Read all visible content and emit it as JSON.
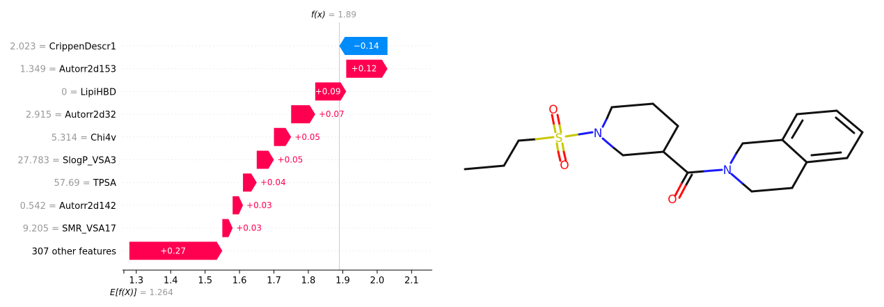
{
  "chart_data": {
    "type": "waterfall",
    "title": "",
    "fx_label": "f(x)",
    "fx_value": "1.89",
    "base_label": "E[f(X)]",
    "base_value": "1.264",
    "base": 1.264,
    "final": 1.89,
    "xlim": [
      1.26,
      2.16
    ],
    "xticks": [
      1.3,
      1.4,
      1.5,
      1.6,
      1.7,
      1.8,
      1.9,
      2.0,
      2.1
    ],
    "xtick_labels": [
      "1.3",
      "1.4",
      "1.5",
      "1.6",
      "1.7",
      "1.8",
      "1.9",
      "2.0",
      "2.1"
    ],
    "positive_color": "#ff0051",
    "negative_color": "#008bfb",
    "features": [
      {
        "value": "2.023",
        "name": "CrippenDescr1",
        "contribution": -0.14,
        "label": "−0.14"
      },
      {
        "value": "1.349",
        "name": "Autorr2d153",
        "contribution": 0.12,
        "label": "+0.12"
      },
      {
        "value": "0",
        "name": "LipiHBD",
        "contribution": 0.09,
        "label": "+0.09"
      },
      {
        "value": "2.915",
        "name": "Autorr2d32",
        "contribution": 0.07,
        "label": "+0.07"
      },
      {
        "value": "5.314",
        "name": "Chi4v",
        "contribution": 0.05,
        "label": "+0.05"
      },
      {
        "value": "27.783",
        "name": "SlogP_VSA3",
        "contribution": 0.05,
        "label": "+0.05"
      },
      {
        "value": "57.69",
        "name": "TPSA",
        "contribution": 0.04,
        "label": "+0.04"
      },
      {
        "value": "0.542",
        "name": "Autorr2d142",
        "contribution": 0.03,
        "label": "+0.03"
      },
      {
        "value": "9.205",
        "name": "SMR_VSA17",
        "contribution": 0.03,
        "label": "+0.03"
      },
      {
        "value": "",
        "name": "307 other features",
        "contribution": 0.27,
        "label": "+0.27"
      }
    ]
  },
  "molecule": {
    "atoms": [
      "O",
      "O",
      "S",
      "N",
      "O",
      "N"
    ],
    "colors": {
      "bond": "#111111",
      "oxygen": "#ff0d0d",
      "nitrogen": "#1a1aff",
      "sulfur": "#c8c800"
    }
  }
}
